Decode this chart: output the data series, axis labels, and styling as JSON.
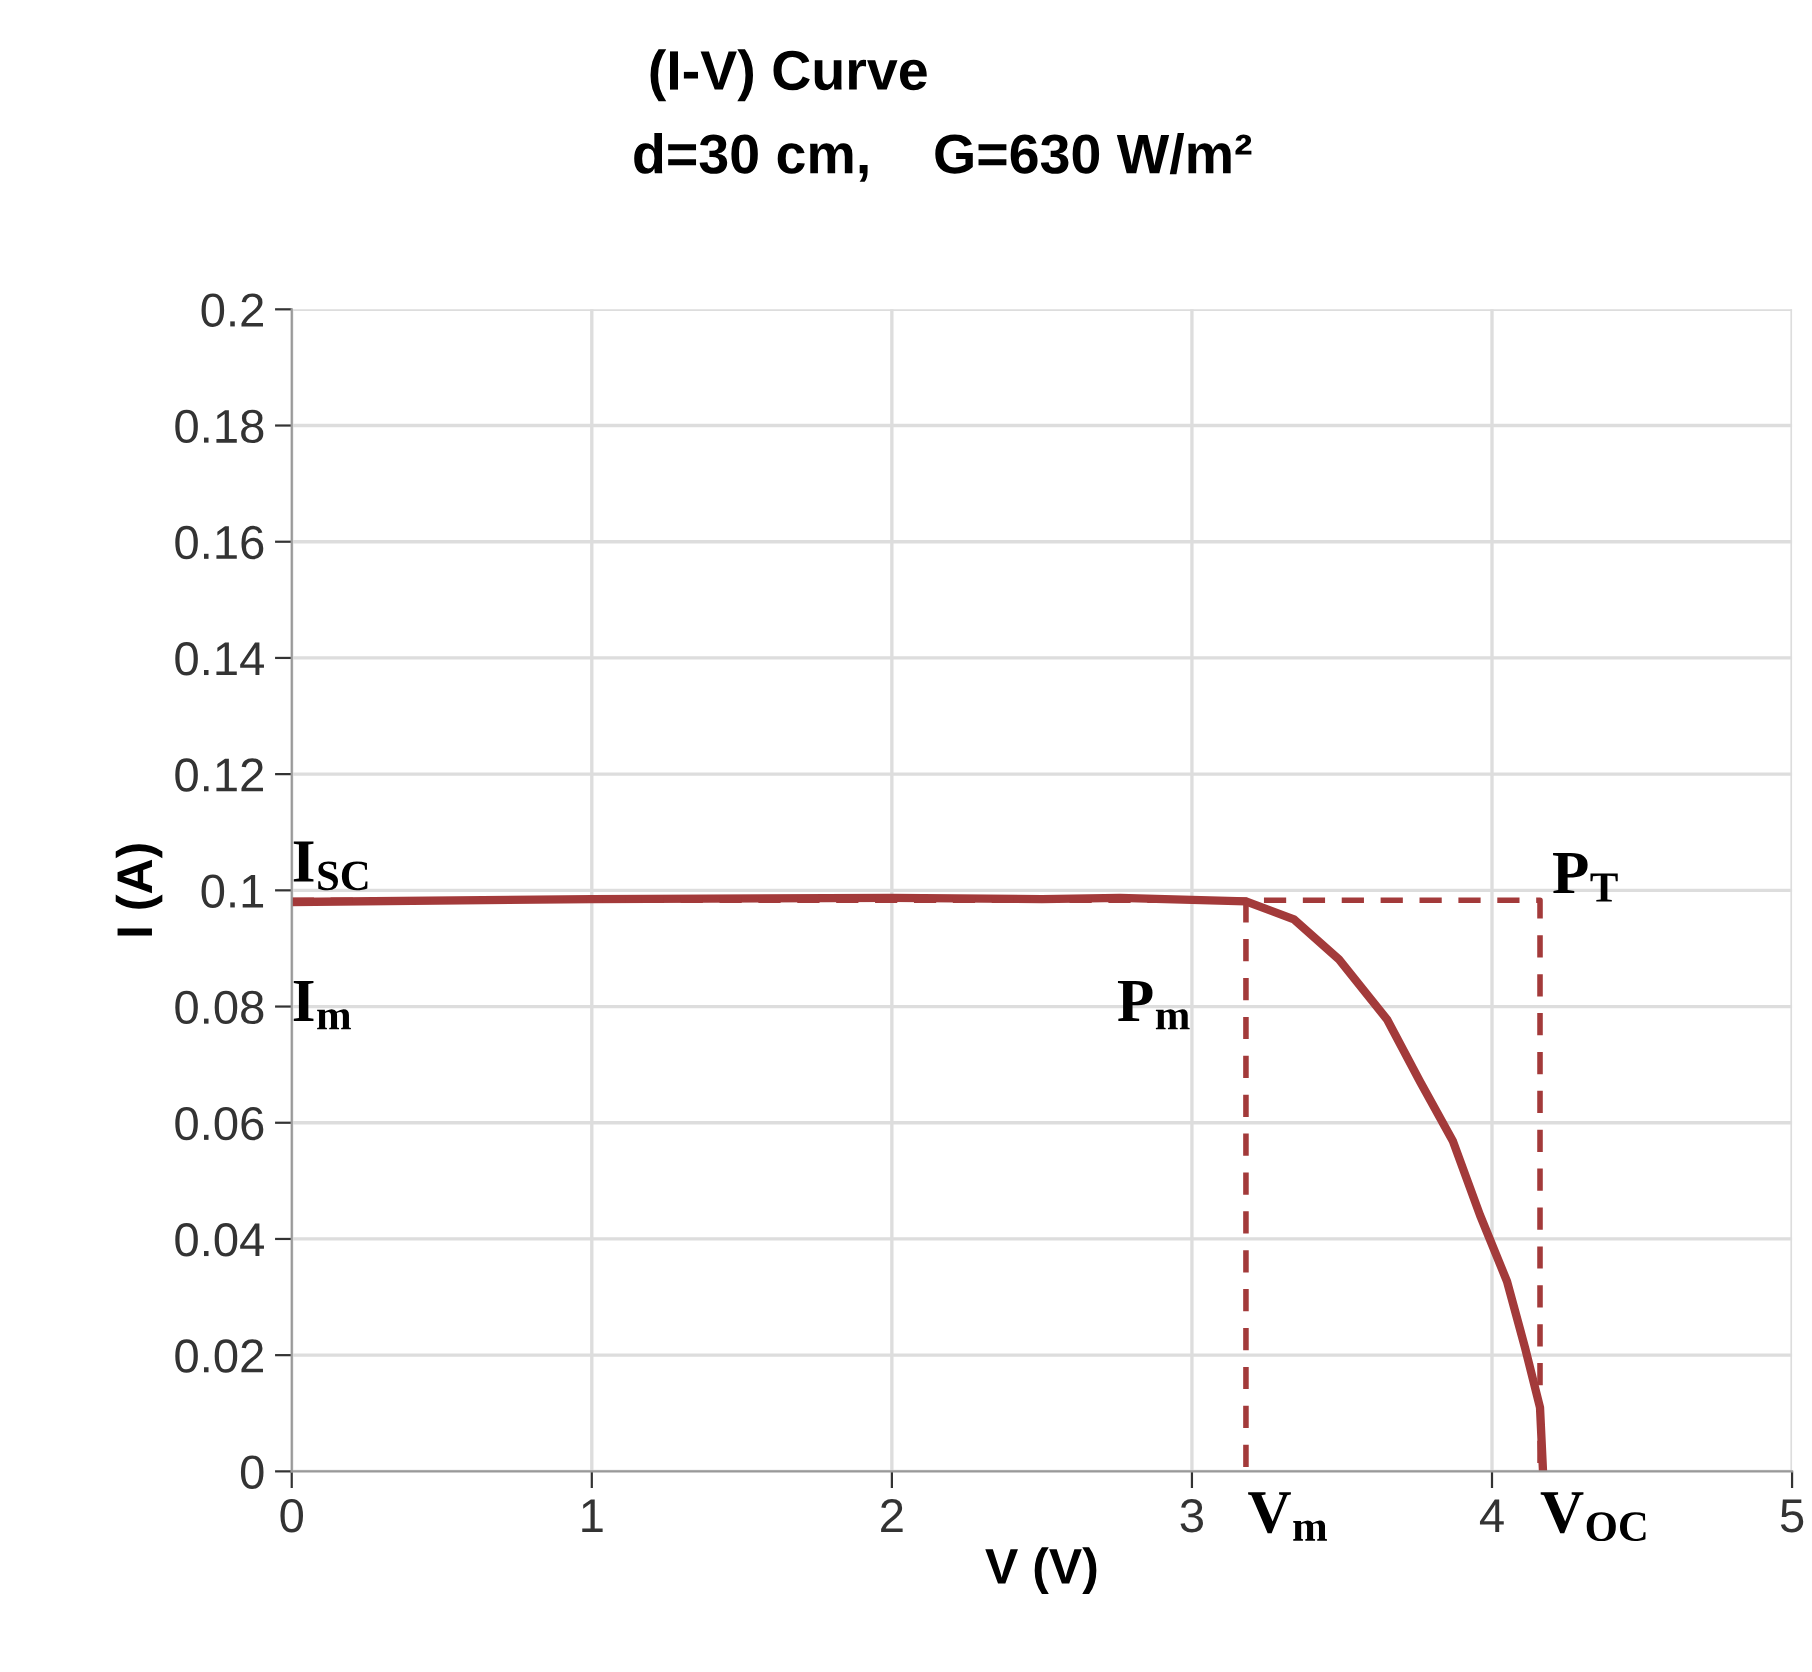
{
  "chart_data": {
    "type": "line",
    "title": "(I-V) Curve",
    "subtitle": "d=30 cm,    G=630 W/m²",
    "xlabel": "V (V)",
    "ylabel": "I (A)",
    "xlim": [
      0,
      5
    ],
    "xticks": [
      0,
      1,
      2,
      3,
      4,
      5
    ],
    "ylim": [
      0,
      0.2
    ],
    "yticks": [
      0,
      0.02,
      0.04,
      0.06,
      0.08,
      0.1,
      0.12,
      0.14,
      0.16,
      0.18,
      0.2
    ],
    "grid": true,
    "legend": false,
    "series": [
      {
        "color": "#a33a3a",
        "line_style": "solid",
        "x": [
          0,
          1,
          2,
          2.5,
          2.76,
          3.18,
          3.34,
          3.49,
          3.65,
          3.76,
          3.87,
          3.96,
          4.05,
          4.11,
          4.16,
          4.17
        ],
        "values": [
          0.098,
          0.0985,
          0.0987,
          0.0985,
          0.0987,
          0.0981,
          0.095,
          0.0881,
          0.0778,
          0.0671,
          0.0568,
          0.0441,
          0.0327,
          0.0213,
          0.011,
          0
        ]
      },
      {
        "color": "#a33a3a",
        "line_style": "dashed",
        "x": [
          0,
          4.16,
          4.16
        ],
        "values": [
          0.0983,
          0.0983,
          0
        ]
      },
      {
        "color": "#a33a3a",
        "line_style": "dashed",
        "x": [
          3.18,
          3.18
        ],
        "values": [
          0.0983,
          0
        ]
      }
    ],
    "annotations": [
      "I$_{SC}$",
      "I$_{m}$",
      "P$_{m}$",
      "P$_{T}$",
      "V$_{m}$",
      "V$_{OC}$"
    ]
  }
}
